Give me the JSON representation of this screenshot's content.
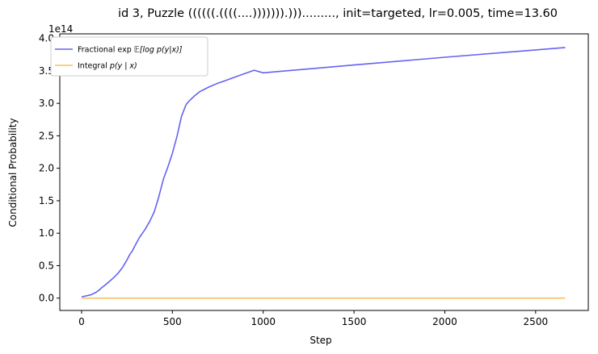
{
  "chart_data": {
    "type": "line",
    "title": "id 3, Puzzle ((((((.((((....))))))).)))........., init=targeted, lr=0.005, time=13.60",
    "xlabel": "Step",
    "ylabel": "Conditional Probability",
    "y_offset_label": "1e14",
    "xlim": [
      -120,
      2790
    ],
    "ylim": [
      -0.19,
      4.07
    ],
    "x_ticks": [
      0,
      500,
      1000,
      1500,
      2000,
      2500
    ],
    "x_tick_labels": [
      "0",
      "500",
      "1000",
      "1500",
      "2000",
      "2500"
    ],
    "y_ticks": [
      0.0,
      0.5,
      1.0,
      1.5,
      2.0,
      2.5,
      3.0,
      3.5,
      4.0
    ],
    "y_tick_labels": [
      "0.0",
      "0.5",
      "1.0",
      "1.5",
      "2.0",
      "2.5",
      "3.0",
      "3.5",
      "4.0"
    ],
    "grid": false,
    "legend_position": "top-left",
    "series": [
      {
        "name": "Fractional exp𝔼[log p(y|x)]",
        "legend_main": "Fractional exp",
        "legend_math": "𝔼[log p(y|x)]",
        "color": "#6464f0",
        "x": [
          0,
          50,
          80,
          100,
          110,
          125,
          150,
          175,
          200,
          225,
          250,
          265,
          280,
          300,
          320,
          350,
          375,
          400,
          425,
          450,
          475,
          500,
          525,
          550,
          575,
          590,
          605,
          620,
          650,
          700,
          750,
          800,
          850,
          900,
          950,
          1000,
          1500,
          2000,
          2663
        ],
        "y": [
          0.02,
          0.05,
          0.09,
          0.13,
          0.16,
          0.19,
          0.25,
          0.31,
          0.38,
          0.47,
          0.59,
          0.67,
          0.73,
          0.84,
          0.94,
          1.06,
          1.18,
          1.33,
          1.56,
          1.83,
          2.02,
          2.23,
          2.49,
          2.8,
          2.98,
          3.03,
          3.07,
          3.11,
          3.18,
          3.25,
          3.31,
          3.36,
          3.41,
          3.46,
          3.51,
          3.47,
          3.59,
          3.71,
          3.86
        ]
      },
      {
        "name": "Integral p(y | x)",
        "legend_main": "Integral",
        "legend_math": "p(y | x)",
        "color": "#f5c15c",
        "x": [
          0,
          2663
        ],
        "y": [
          0.0,
          0.0
        ]
      }
    ]
  }
}
